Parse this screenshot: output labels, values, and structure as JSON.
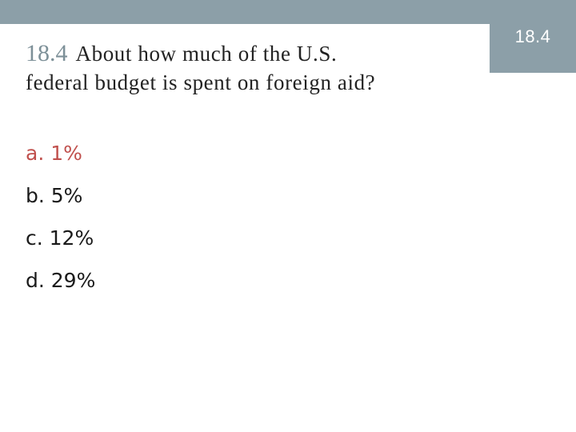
{
  "header": {
    "bar_color": "#8c9fa8",
    "section_label": "18.4"
  },
  "question": {
    "number": "18.4",
    "line1": "About how much of the U.S.",
    "line2": "federal budget is spent on foreign aid?"
  },
  "options": [
    {
      "text": "a. 1%",
      "highlighted": true
    },
    {
      "text": "b. 5%",
      "highlighted": false
    },
    {
      "text": "c. 12%",
      "highlighted": false
    },
    {
      "text": "d. 29%",
      "highlighted": false
    }
  ],
  "colors": {
    "highlight": "#c0504d",
    "number": "#7d9098",
    "text": "#222222"
  }
}
